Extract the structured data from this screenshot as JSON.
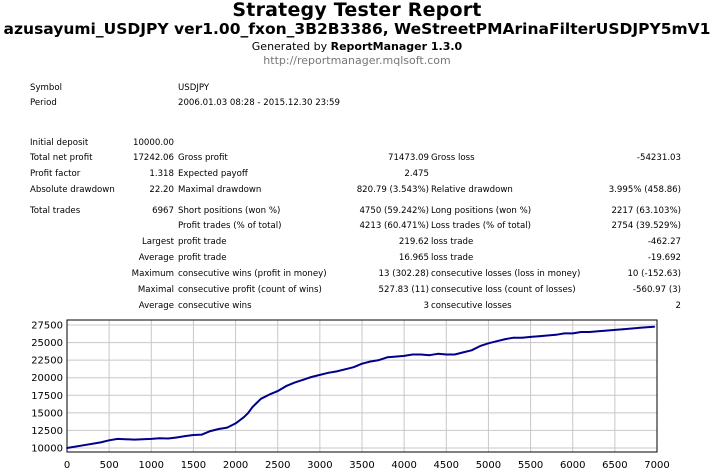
{
  "report": {
    "title": "Strategy Tester Report",
    "subtitle": "azusayumi_USDJPY ver1.00_fxon_3B2B3386, WeStreetPMArinaFilterUSDJPY5mV1",
    "generated_prefix": "Generated by ",
    "generator": "ReportManager 1.3.0",
    "website": "http://reportmanager.mqlsoft.com"
  },
  "info": {
    "symbol_label": "Symbol",
    "symbol": "USDJPY",
    "period_label": "Period",
    "period": "2006.01.03 08:28 - 2015.12.30 23:59"
  },
  "stats": {
    "initial_deposit_label": "Initial deposit",
    "initial_deposit": "10000.00",
    "total_net_profit_label": "Total net profit",
    "total_net_profit": "17242.06",
    "gross_profit_label": "Gross profit",
    "gross_profit": "71473.09",
    "gross_loss_label": "Gross loss",
    "gross_loss": "-54231.03",
    "profit_factor_label": "Profit factor",
    "profit_factor": "1.318",
    "expected_payoff_label": "Expected payoff",
    "expected_payoff": "2.475",
    "absolute_drawdown_label": "Absolute drawdown",
    "absolute_drawdown": "22.20",
    "maximal_drawdown_label": "Maximal drawdown",
    "maximal_drawdown": "820.79 (3.543%)",
    "relative_drawdown_label": "Relative drawdown",
    "relative_drawdown": "3.995% (458.86)",
    "total_trades_label": "Total trades",
    "total_trades": "6967",
    "short_positions_label": "Short positions (won %)",
    "short_positions": "4750 (59.242%)",
    "long_positions_label": "Long positions (won %)",
    "long_positions": "2217 (63.103%)",
    "profit_trades_label": "Profit trades (% of total)",
    "profit_trades": "4213 (60.471%)",
    "loss_trades_label": "Loss trades (% of total)",
    "loss_trades": "2754 (39.529%)",
    "largest_label": "Largest",
    "largest_profit_label": "profit trade",
    "largest_profit": "219.62",
    "largest_loss_label": "loss trade",
    "largest_loss": "-462.27",
    "average_label": "Average",
    "average_profit_label": "profit trade",
    "average_profit": "16.965",
    "average_loss_label": "loss trade",
    "average_loss": "-19.692",
    "maximum_label": "Maximum",
    "max_consec_wins_label": "consecutive wins (profit in money)",
    "max_consec_wins": "13 (302.28)",
    "max_consec_losses_label": "consecutive losses (loss in money)",
    "max_consec_losses": "10 (-152.63)",
    "maximal_label": "Maximal",
    "maximal_consec_profit_label": "consecutive profit (count of wins)",
    "maximal_consec_profit": "527.83 (11)",
    "maximal_consec_loss_label": "consecutive loss (count of losses)",
    "maximal_consec_loss": "-560.97 (3)",
    "average2_label": "Average",
    "avg_consec_wins_label": "consecutive wins",
    "avg_consec_wins": "3",
    "avg_consec_losses_label": "consecutive losses",
    "avg_consec_losses": "2"
  },
  "chart_data": {
    "type": "line",
    "title": "",
    "xlabel": "",
    "ylabel": "",
    "xlim": [
      0,
      7000
    ],
    "ylim": [
      10000,
      27500
    ],
    "x_ticks": [
      0,
      500,
      1000,
      1500,
      2000,
      2500,
      3000,
      3500,
      4000,
      4500,
      5000,
      5500,
      6000,
      6500,
      7000
    ],
    "y_ticks": [
      10000,
      12500,
      15000,
      17500,
      20000,
      22500,
      25000,
      27500
    ],
    "grid": true,
    "line_color": "#00008b",
    "series": [
      {
        "name": "",
        "x": [
          0,
          200,
          400,
          500,
          600,
          800,
          1000,
          1100,
          1200,
          1300,
          1400,
          1500,
          1600,
          1700,
          1800,
          1900,
          2000,
          2100,
          2150,
          2200,
          2250,
          2300,
          2400,
          2500,
          2600,
          2700,
          2800,
          2900,
          3000,
          3100,
          3200,
          3300,
          3400,
          3500,
          3600,
          3700,
          3800,
          3900,
          4000,
          4100,
          4200,
          4300,
          4400,
          4500,
          4600,
          4700,
          4800,
          4900,
          5000,
          5100,
          5200,
          5300,
          5400,
          5500,
          5600,
          5700,
          5800,
          5900,
          6000,
          6100,
          6200,
          6300,
          6400,
          6500,
          6600,
          6700,
          6800,
          6900,
          6967
        ],
        "y": [
          10000,
          10400,
          10800,
          11100,
          11300,
          11200,
          11300,
          11400,
          11350,
          11500,
          11700,
          11850,
          11900,
          12400,
          12700,
          12900,
          13500,
          14400,
          15000,
          15800,
          16400,
          17000,
          17600,
          18100,
          18800,
          19300,
          19700,
          20100,
          20400,
          20700,
          20900,
          21200,
          21500,
          22000,
          22300,
          22500,
          22900,
          23000,
          23100,
          23300,
          23300,
          23200,
          23400,
          23300,
          23300,
          23600,
          23900,
          24500,
          24900,
          25200,
          25500,
          25700,
          25700,
          25800,
          25900,
          26000,
          26100,
          26300,
          26300,
          26500,
          26500,
          26600,
          26700,
          26800,
          26900,
          27000,
          27100,
          27200,
          27242
        ]
      }
    ]
  }
}
